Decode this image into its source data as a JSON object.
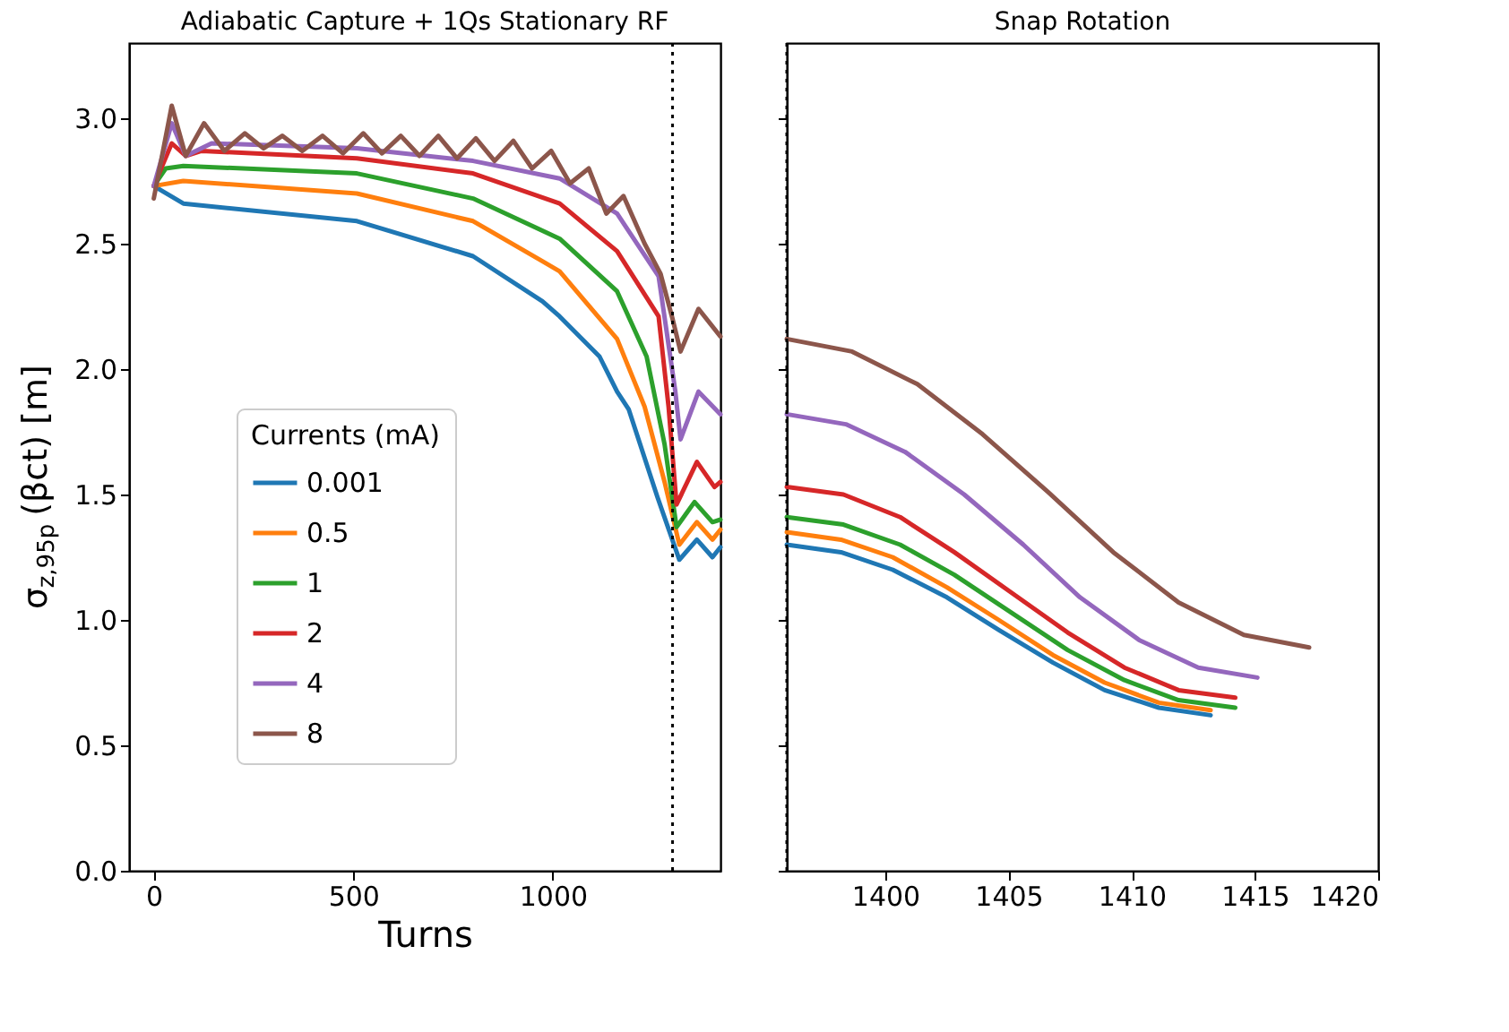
{
  "chart_data": [
    {
      "type": "line",
      "title": "Adiabatic Capture + 1Qs Stationary RF",
      "xlabel": "Turns",
      "ylabel": "σ$_{z,95p}$ (βct) [m]",
      "legend_title": "Currents (mA)",
      "legend": "bottom left",
      "grid": false,
      "line_style": "solid",
      "xlim": [
        -62,
        1420
      ],
      "xticks": [
        0,
        500,
        1000
      ],
      "ylim": [
        0,
        3.3
      ],
      "yticks": [
        {
          "value": 0,
          "label": "0.0"
        },
        0.5,
        {
          "value": 1,
          "label": "1.0"
        },
        1.5,
        {
          "value": 2,
          "label": "2.0"
        },
        2.5,
        {
          "value": 3,
          "label": "3.0"
        }
      ],
      "ref_lines": [
        {
          "axis": "x",
          "value": 1300,
          "line_style": "dotted",
          "color": "#000000"
        }
      ],
      "series": [
        {
          "name": "0.001",
          "color": "#1f77b4",
          "x": [
            0,
            74,
            509,
            800,
            974,
            1017,
            1117,
            1161,
            1190,
            1262,
            1317,
            1361,
            1400,
            1420
          ],
          "values": [
            2.73,
            2.66,
            2.59,
            2.45,
            2.27,
            2.21,
            2.05,
            1.91,
            1.84,
            1.49,
            1.24,
            1.32,
            1.25,
            1.29
          ]
        },
        {
          "name": "0.5",
          "color": "#ff7f0e",
          "x": [
            0,
            74,
            509,
            800,
            974,
            1017,
            1161,
            1230,
            1280,
            1317,
            1361,
            1400,
            1420
          ],
          "values": [
            2.73,
            2.75,
            2.7,
            2.59,
            2.43,
            2.39,
            2.12,
            1.85,
            1.55,
            1.3,
            1.39,
            1.32,
            1.36
          ]
        },
        {
          "name": "1",
          "color": "#2ca02c",
          "x": [
            0,
            30,
            74,
            509,
            800,
            1017,
            1161,
            1235,
            1280,
            1310,
            1355,
            1400,
            1420
          ],
          "values": [
            2.73,
            2.8,
            2.81,
            2.78,
            2.68,
            2.52,
            2.31,
            2.05,
            1.7,
            1.37,
            1.47,
            1.39,
            1.4
          ]
        },
        {
          "name": "2",
          "color": "#d62728",
          "x": [
            0,
            45,
            80,
            120,
            509,
            800,
            1017,
            1161,
            1265,
            1290,
            1310,
            1361,
            1405,
            1420
          ],
          "values": [
            2.73,
            2.9,
            2.85,
            2.87,
            2.84,
            2.78,
            2.66,
            2.47,
            2.21,
            1.85,
            1.46,
            1.63,
            1.53,
            1.55
          ]
        },
        {
          "name": "4",
          "color": "#9467bd",
          "x": [
            0,
            45,
            80,
            145,
            509,
            800,
            1017,
            1161,
            1265,
            1307,
            1320,
            1365,
            1420
          ],
          "values": [
            2.73,
            2.98,
            2.85,
            2.9,
            2.88,
            2.83,
            2.76,
            2.62,
            2.37,
            1.91,
            1.72,
            1.91,
            1.82
          ]
        },
        {
          "name": "8",
          "color": "#8c564b",
          "x": [
            0,
            45,
            80,
            126,
            177,
            228,
            275,
            322,
            372,
            423,
            474,
            525,
            572,
            619,
            666,
            713,
            760,
            807,
            854,
            901,
            948,
            996,
            1043,
            1090,
            1134,
            1177,
            1230,
            1270,
            1300,
            1320,
            1365,
            1420
          ],
          "values": [
            2.68,
            3.05,
            2.85,
            2.98,
            2.87,
            2.94,
            2.88,
            2.93,
            2.87,
            2.93,
            2.86,
            2.94,
            2.86,
            2.93,
            2.85,
            2.93,
            2.84,
            2.92,
            2.83,
            2.91,
            2.8,
            2.87,
            2.74,
            2.8,
            2.62,
            2.69,
            2.5,
            2.38,
            2.2,
            2.07,
            2.24,
            2.13
          ]
        }
      ]
    },
    {
      "type": "line",
      "title": "Snap Rotation",
      "legend": false,
      "grid": false,
      "line_style": "solid",
      "tick_labels": "x",
      "xlim": [
        1396,
        1420
      ],
      "xticks": [
        1400,
        1405,
        1410,
        1415,
        1420
      ],
      "ylim": [
        0,
        3.3
      ],
      "yticks": [
        0,
        0.5,
        1,
        1.5,
        2,
        2.5,
        3
      ],
      "ref_lines": [
        {
          "axis": "x",
          "value": 1396,
          "line_style": "dotted",
          "color": "#000000"
        }
      ],
      "series": [
        {
          "color": "#1f77b4",
          "x": [
            1396,
            1398.2,
            1400.3,
            1402.5,
            1404.6,
            1406.8,
            1408.9,
            1411.1,
            1413.2
          ],
          "values": [
            1.3,
            1.27,
            1.2,
            1.09,
            0.96,
            0.83,
            0.72,
            0.65,
            0.62
          ]
        },
        {
          "color": "#ff7f0e",
          "x": [
            1396,
            1398.2,
            1400.3,
            1402.5,
            1404.6,
            1406.8,
            1408.9,
            1411.1,
            1413.2
          ],
          "values": [
            1.35,
            1.32,
            1.25,
            1.13,
            1.0,
            0.86,
            0.75,
            0.67,
            0.64
          ]
        },
        {
          "color": "#2ca02c",
          "x": [
            1396,
            1398.3,
            1400.6,
            1402.8,
            1405.1,
            1407.4,
            1409.7,
            1411.9,
            1414.2
          ],
          "values": [
            1.41,
            1.38,
            1.3,
            1.18,
            1.03,
            0.88,
            0.76,
            0.68,
            0.65
          ]
        },
        {
          "color": "#d62728",
          "x": [
            1396,
            1398.3,
            1400.6,
            1402.8,
            1405.1,
            1407.4,
            1409.7,
            1411.9,
            1414.2
          ],
          "values": [
            1.53,
            1.5,
            1.41,
            1.27,
            1.11,
            0.95,
            0.81,
            0.72,
            0.69
          ]
        },
        {
          "color": "#9467bd",
          "x": [
            1396,
            1398.4,
            1400.8,
            1403.2,
            1405.6,
            1407.9,
            1410.3,
            1412.7,
            1415.1
          ],
          "values": [
            1.82,
            1.78,
            1.67,
            1.5,
            1.3,
            1.09,
            0.92,
            0.81,
            0.77
          ]
        },
        {
          "color": "#8c564b",
          "x": [
            1396,
            1398.65,
            1401.3,
            1403.95,
            1406.6,
            1409.25,
            1411.9,
            1414.55,
            1417.2
          ],
          "values": [
            2.12,
            2.07,
            1.94,
            1.74,
            1.51,
            1.27,
            1.07,
            0.94,
            0.89
          ]
        }
      ]
    }
  ]
}
